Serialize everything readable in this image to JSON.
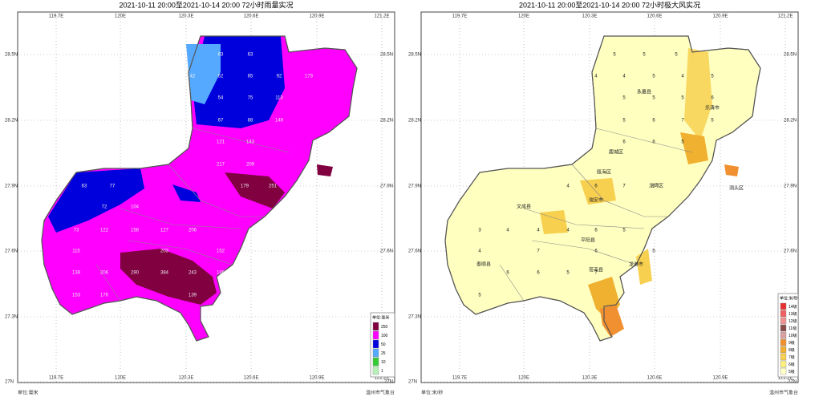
{
  "maps": [
    {
      "title": "2021-10-11 20:00至2021-10-14 20:00 72小时雨量实况",
      "lon_labels": [
        "119.7E",
        "120E",
        "120.3E",
        "120.6E",
        "120.9E",
        "121.2E"
      ],
      "lat_labels": [
        "28.5N",
        "28.2N",
        "27.9N",
        "27.6N",
        "27.3N",
        "27N"
      ],
      "legend": {
        "title": "单位:毫米",
        "items": [
          {
            "label": "250",
            "color": "#800040"
          },
          {
            "label": "100",
            "color": "#ff00ff"
          },
          {
            "label": "50",
            "color": "#0000dd"
          },
          {
            "label": "25",
            "color": "#55aaff"
          },
          {
            "label": "10",
            "color": "#33cc33"
          },
          {
            "label": "1",
            "color": "#b8f0b8"
          }
        ]
      },
      "base_color": "#ff00ff",
      "values": [
        "63",
        "63",
        "42",
        "62",
        "65",
        "92",
        "173",
        "54",
        "75",
        "113",
        "67",
        "88",
        "149",
        "121",
        "143",
        "217",
        "209",
        "63",
        "77",
        "72",
        "104",
        "179",
        "251",
        "73",
        "122",
        "158",
        "127",
        "206",
        "115",
        "203",
        "152",
        "138",
        "206",
        "290",
        "384",
        "243",
        "186",
        "153",
        "176",
        "139"
      ],
      "places": [],
      "footer_left": "单位:毫米",
      "footer_right": "温州市气象台"
    },
    {
      "title": "2021-10-11 20:00至2021-10-14 20:00 72小时极大风实况",
      "lon_labels": [
        "119.7E",
        "120E",
        "120.3E",
        "120.6E",
        "120.9E",
        "121.2E"
      ],
      "lat_labels": [
        "28.5N",
        "28.2N",
        "27.9N",
        "27.6N",
        "27.3N",
        "27N"
      ],
      "legend": {
        "title": "单位:米/秒",
        "items": [
          {
            "label": "14级",
            "color": "#e83030"
          },
          {
            "label": "13级",
            "color": "#f06060"
          },
          {
            "label": "12级",
            "color": "#f09090"
          },
          {
            "label": "11级",
            "color": "#8b4a4a"
          },
          {
            "label": "10级",
            "color": "#d8a0a0"
          },
          {
            "label": "9级",
            "color": "#f09030"
          },
          {
            "label": "8级",
            "color": "#f0b030"
          },
          {
            "label": "7级",
            "color": "#f8d050"
          },
          {
            "label": "6级",
            "color": "#fff080"
          },
          {
            "label": "5级",
            "color": "#ffffc8"
          }
        ]
      },
      "base_color": "#ffffc0",
      "values": [
        "5",
        "5",
        "5",
        "4",
        "4",
        "5",
        "4",
        "5",
        "5",
        "5",
        "5",
        "6",
        "5",
        "6",
        "7",
        "5",
        "6",
        "6",
        "5",
        "4",
        "6",
        "7",
        "6",
        "3",
        "4",
        "4",
        "4",
        "6",
        "5",
        "4",
        "7",
        "6",
        "5",
        "6",
        "6",
        "5",
        "7",
        "5"
      ],
      "places": [
        "永嘉县",
        "乐清市",
        "鹿城区",
        "瓯海区",
        "龙湾区",
        "洞头区",
        "瑞安市",
        "文成县",
        "平阳县",
        "泰顺县",
        "苍南县",
        "龙港市"
      ],
      "footer_left": "单位:米/秒",
      "footer_right": "温州市气象台"
    }
  ]
}
